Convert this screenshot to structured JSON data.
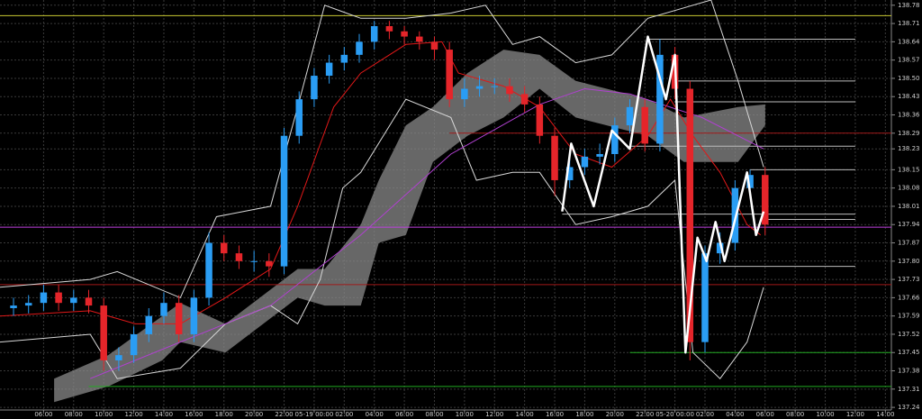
{
  "chart_data": {
    "type": "candlestick",
    "x": [
      4,
      5,
      6,
      7,
      8,
      9,
      10,
      11,
      12,
      13,
      14,
      15,
      16,
      17,
      18,
      19,
      20,
      21,
      22,
      23,
      24,
      25,
      26,
      27,
      28,
      29,
      30,
      31,
      32,
      33,
      34,
      35,
      36,
      37,
      38,
      39,
      40,
      41,
      42,
      43,
      44,
      45,
      46,
      47,
      48,
      49,
      50,
      51,
      52,
      53,
      54
    ],
    "open": [
      137.62,
      137.63,
      137.64,
      137.68,
      137.64,
      137.66,
      137.63,
      137.42,
      137.44,
      137.52,
      137.59,
      137.64,
      137.52,
      137.66,
      137.87,
      137.83,
      137.8,
      137.8,
      137.78,
      138.28,
      138.42,
      138.51,
      138.56,
      138.59,
      138.64,
      138.7,
      138.68,
      138.66,
      138.64,
      138.61,
      138.42,
      138.46,
      138.47,
      138.47,
      138.44,
      138.4,
      138.28,
      138.11,
      138.16,
      138.2,
      138.21,
      138.32,
      138.39,
      138.25,
      138.59,
      138.46,
      137.49,
      137.83,
      137.87,
      138.08,
      138.13
    ],
    "high": [
      137.66,
      137.67,
      137.71,
      137.71,
      137.69,
      137.69,
      137.66,
      137.47,
      137.55,
      137.62,
      137.68,
      137.67,
      137.69,
      137.91,
      137.9,
      137.86,
      137.84,
      137.83,
      138.31,
      138.45,
      138.54,
      138.59,
      138.62,
      138.67,
      138.72,
      138.72,
      138.7,
      138.68,
      138.66,
      138.64,
      138.5,
      138.51,
      138.5,
      138.5,
      138.47,
      138.43,
      138.31,
      138.2,
      138.23,
      138.25,
      138.35,
      138.42,
      138.42,
      138.65,
      138.62,
      138.49,
      137.86,
      137.91,
      138.11,
      138.15,
      138.16
    ],
    "low": [
      137.59,
      137.6,
      137.61,
      137.61,
      137.61,
      137.6,
      137.38,
      137.38,
      137.41,
      137.49,
      137.56,
      137.49,
      137.49,
      137.63,
      137.8,
      137.77,
      137.76,
      137.74,
      137.75,
      138.25,
      138.39,
      138.48,
      138.53,
      138.56,
      138.61,
      138.65,
      138.63,
      138.61,
      138.57,
      138.39,
      138.39,
      138.43,
      138.44,
      138.41,
      138.37,
      138.25,
      138.05,
      138.08,
      138.13,
      138.17,
      138.18,
      138.29,
      138.22,
      138.22,
      138.42,
      137.42,
      137.45,
      137.79,
      137.84,
      138.04,
      137.9
    ],
    "close": [
      137.63,
      137.64,
      137.68,
      137.64,
      137.66,
      137.63,
      137.42,
      137.44,
      137.52,
      137.59,
      137.64,
      137.52,
      137.66,
      137.87,
      137.83,
      137.8,
      137.8,
      137.78,
      138.28,
      138.42,
      138.51,
      138.56,
      138.59,
      138.64,
      138.7,
      138.68,
      138.66,
      138.64,
      138.61,
      138.42,
      138.46,
      138.47,
      138.47,
      138.44,
      138.4,
      138.28,
      138.11,
      138.16,
      138.2,
      138.21,
      138.32,
      138.39,
      138.25,
      138.59,
      138.46,
      137.49,
      137.83,
      137.87,
      138.08,
      138.13,
      137.94
    ],
    "up_color": "#2a9df4",
    "down_color": "#e5252a",
    "xlim": [
      3.1,
      62.4
    ],
    "ylim": [
      137.23,
      138.8
    ],
    "xticks": [
      {
        "value": 6,
        "label": "06:00"
      },
      {
        "value": 8,
        "label": "08:00"
      },
      {
        "value": 10,
        "label": "10:00"
      },
      {
        "value": 12,
        "label": "12:00"
      },
      {
        "value": 14,
        "label": "14:00"
      },
      {
        "value": 16,
        "label": "16:00"
      },
      {
        "value": 18,
        "label": "18:00"
      },
      {
        "value": 20,
        "label": "20:00"
      },
      {
        "value": 22,
        "label": "22:00"
      },
      {
        "value": 24,
        "label": "05-19 00:00"
      },
      {
        "value": 26,
        "label": "02:00"
      },
      {
        "value": 28,
        "label": "04:00"
      },
      {
        "value": 30,
        "label": "06:00"
      },
      {
        "value": 32,
        "label": "08:00"
      },
      {
        "value": 34,
        "label": "10:00"
      },
      {
        "value": 36,
        "label": "12:00"
      },
      {
        "value": 38,
        "label": "14:00"
      },
      {
        "value": 40,
        "label": "16:00"
      },
      {
        "value": 42,
        "label": "18:00"
      },
      {
        "value": 44,
        "label": "20:00"
      },
      {
        "value": 46,
        "label": "22:00"
      },
      {
        "value": 48,
        "label": "05-20 00:00"
      },
      {
        "value": 50,
        "label": "02:00"
      },
      {
        "value": 52,
        "label": "04:00"
      },
      {
        "value": 54,
        "label": "06:00"
      },
      {
        "value": 56,
        "label": "08:00"
      },
      {
        "value": 58,
        "label": "10:00"
      },
      {
        "value": 60,
        "label": "12:00"
      },
      {
        "value": 62,
        "label": "14:00"
      }
    ],
    "yticks": [
      138.78,
      138.71,
      138.64,
      138.57,
      {
        "value": 138.5,
        "label": "138.50"
      },
      138.43,
      138.36,
      138.29,
      138.23,
      138.15,
      138.08,
      138.01,
      137.94,
      137.87,
      {
        "value": 137.8,
        "label": "137.80"
      },
      137.73,
      137.66,
      137.59,
      137.52,
      137.45,
      137.38,
      137.31,
      137.24
    ],
    "grid": true,
    "cloud": {
      "color": "#8a8a8a",
      "x": [
        6.7,
        10.3,
        13.9,
        15.1,
        18.1,
        22.9,
        24.7,
        27.1,
        28.3,
        30.1,
        31.9,
        34.2,
        36.6,
        39,
        41.4,
        46.2,
        48.6,
        52.2,
        54
      ],
      "upper": [
        137.35,
        137.44,
        137.59,
        137.64,
        137.56,
        137.77,
        137.77,
        137.94,
        138.11,
        138.32,
        138.39,
        138.52,
        138.61,
        138.59,
        138.49,
        138.42,
        138.35,
        138.39,
        138.4
      ],
      "lower": [
        137.26,
        137.32,
        137.42,
        137.49,
        137.45,
        137.66,
        137.63,
        137.63,
        137.87,
        137.9,
        138.18,
        138.28,
        138.35,
        138.46,
        138.35,
        138.28,
        138.18,
        138.18,
        138.32
      ]
    },
    "levels": [
      {
        "value": 138.74,
        "color": "#c8c832"
      },
      {
        "value": 137.93,
        "color": "#c040e0"
      },
      {
        "value": 137.71,
        "color": "#a01818"
      },
      {
        "value": 138.29,
        "color": "#a01818",
        "from": 33
      },
      {
        "value": 137.45,
        "color": "#22aa22",
        "from": 45
      },
      {
        "value": 137.32,
        "color": "#22aa22",
        "from": 9
      },
      {
        "value": 138.65,
        "color": "#bbbbbb",
        "from": 46.2,
        "to": 60
      },
      {
        "value": 138.49,
        "color": "#bbbbbb",
        "from": 48,
        "to": 60
      },
      {
        "value": 138.41,
        "color": "#bbbbbb",
        "from": 48,
        "to": 60
      },
      {
        "value": 138.24,
        "color": "#bbbbbb",
        "from": 45,
        "to": 60
      },
      {
        "value": 138.15,
        "color": "#bbbbbb",
        "from": 53,
        "to": 60
      },
      {
        "value": 137.98,
        "color": "#bbbbbb",
        "from": 40.5,
        "to": 60
      },
      {
        "value": 137.96,
        "color": "#bbbbbb",
        "from": 53.9,
        "to": 60
      },
      {
        "value": 137.78,
        "color": "#bbbbbb",
        "from": 50.1,
        "to": 60
      }
    ],
    "overlays": [
      {
        "color": "#d8d8d8",
        "x": [
          3.1,
          9.1,
          10.9,
          15.1,
          17.5,
          21.1,
          22.9,
          24.7,
          27.1,
          30.1,
          33.1,
          35.4,
          37.2,
          39,
          41.4,
          43.8,
          46.2,
          50.4,
          52.2,
          53.9
        ],
        "values": [
          137.7,
          137.73,
          137.76,
          137.66,
          137.97,
          138.01,
          138.39,
          138.78,
          138.73,
          138.73,
          138.75,
          138.78,
          138.63,
          138.66,
          138.56,
          138.59,
          138.73,
          138.8,
          138.49,
          138.16
        ]
      },
      {
        "color": "#d8d8d8",
        "x": [
          3.1,
          9.1,
          10.9,
          15.1,
          18.1,
          21.1,
          22.9,
          24.4,
          25.9,
          27.1,
          30.1,
          33.1,
          34.8,
          37.2,
          39,
          41.4,
          43.8,
          46.2,
          48,
          49.2,
          51,
          52.8,
          53.9
        ],
        "values": [
          137.49,
          137.52,
          137.35,
          137.39,
          137.56,
          137.63,
          137.56,
          137.73,
          138.08,
          138.14,
          138.42,
          138.35,
          138.11,
          138.14,
          138.14,
          137.94,
          137.97,
          138.01,
          138.11,
          137.45,
          137.35,
          137.49,
          137.7
        ]
      },
      {
        "color": "#b040d0",
        "x": [
          9.1,
          15.1,
          21.1,
          27.1,
          33.1,
          39,
          42,
          45,
          49.8,
          53.9
        ],
        "values": [
          137.35,
          137.49,
          137.63,
          137.9,
          138.21,
          138.4,
          138.46,
          138.44,
          138.35,
          138.23
        ]
      },
      {
        "color": "#e01818",
        "x": [
          3.1,
          9.1,
          12.1,
          15.1,
          18.1,
          21.1,
          22.9,
          25.3,
          27.1,
          30.1,
          32.5,
          33.6,
          36.6,
          39,
          41.4,
          43.8,
          46.2,
          47.7,
          49.2,
          51,
          52.8,
          53.7
        ],
        "values": [
          137.59,
          137.61,
          137.56,
          137.56,
          137.66,
          137.77,
          138.01,
          138.39,
          138.52,
          138.63,
          138.64,
          138.52,
          138.47,
          138.39,
          138.21,
          138.16,
          138.28,
          138.42,
          138.28,
          138.14,
          137.94,
          137.9
        ]
      }
    ],
    "zigzag": {
      "color": "#ffffff",
      "x": [
        40.5,
        41.1,
        42.6,
        43.8,
        45,
        46.2,
        47.4,
        48,
        48.7,
        49.5,
        50.1,
        50.7,
        51.3,
        52.8,
        53.4,
        53.9
      ],
      "values": [
        137.99,
        138.25,
        138.01,
        138.3,
        138.23,
        138.66,
        138.42,
        138.59,
        137.45,
        137.89,
        137.8,
        137.95,
        137.8,
        138.14,
        137.9,
        137.99
      ]
    }
  }
}
